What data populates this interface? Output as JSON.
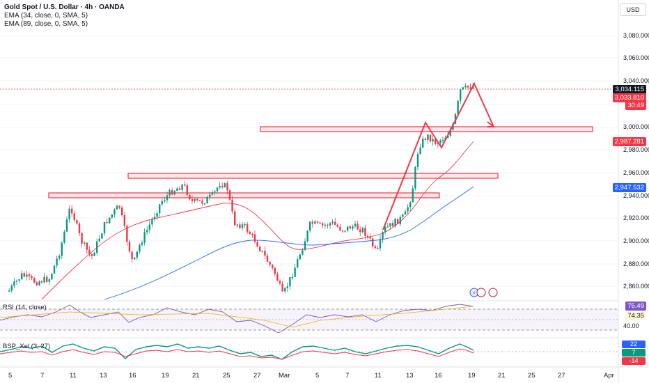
{
  "header": {
    "title": "Gold Spot / U.S. Dollar · 4h · OANDA",
    "ema1": "EMA (34, close, 0, SMA, 5)",
    "ema2": "EMA (89, close, 0, SMA, 5)",
    "currency": "USD"
  },
  "price_axis": {
    "labels": [
      "3,080.000",
      "3,060.000",
      "3,040.000",
      "3,020.000",
      "3,000.000",
      "2,980.000",
      "2,960.000",
      "2,940.000",
      "2,920.000",
      "2,900.000",
      "2,880.000",
      "2,860.000"
    ],
    "tags": {
      "last": "3,034.115",
      "prev": "3,033.810",
      "countdown": "30:49",
      "ema34": "2,987.281",
      "ema89": "2,947.532"
    }
  },
  "rsi": {
    "label": "RSI (14, close)",
    "value": "75.49",
    "ma": "74.35",
    "level_low": "40.00"
  },
  "bsp": {
    "label": "BSP_Xel (3, 27)",
    "v1": "22",
    "v2": "7",
    "v3": "-14"
  },
  "time_axis": [
    "5",
    "7",
    "11",
    "13",
    "16",
    "19",
    "21",
    "25",
    "27",
    "Mar",
    "5",
    "7",
    "11",
    "13",
    "16",
    "19",
    "21",
    "25",
    "27",
    "Apr"
  ],
  "colors": {
    "up": "#089981",
    "down": "#f23645",
    "zone": "#f23645",
    "ema34": "#f23645",
    "ema89": "#2962ff",
    "rsi": "#7e57c2"
  },
  "icons": [
    "flash-icon",
    "us-flag-icon",
    "us-flag-icon"
  ]
}
